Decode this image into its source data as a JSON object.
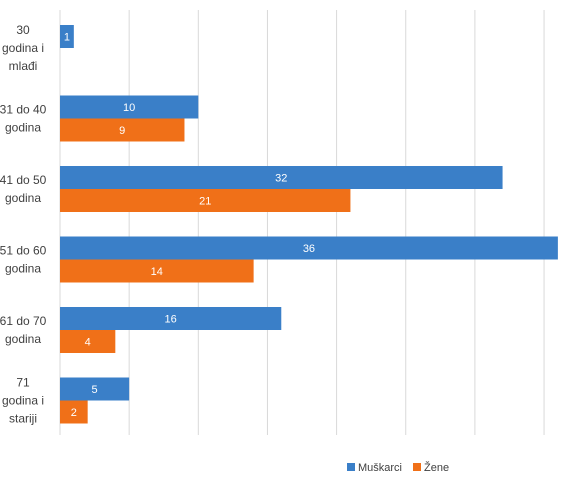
{
  "chart_data": {
    "type": "bar",
    "orientation": "horizontal",
    "categories": [
      [
        "30",
        "godina i",
        "mlađi"
      ],
      [
        "31 do 40",
        "godina"
      ],
      [
        "41 do 50",
        "godina"
      ],
      [
        "51 do 60",
        "godina"
      ],
      [
        "61 do 70",
        "godina"
      ],
      [
        "71",
        "godina i",
        "stariji"
      ]
    ],
    "series": [
      {
        "name": "Muškarci",
        "color": "#3A7FC8",
        "values": [
          1,
          10,
          32,
          36,
          16,
          5
        ]
      },
      {
        "name": "Žene",
        "color": "#F07018",
        "values": [
          0,
          9,
          21,
          14,
          4,
          2
        ]
      }
    ],
    "xlim": [
      0,
      36
    ],
    "gridlines": true,
    "data_labels": true,
    "legend_position": "bottom"
  }
}
